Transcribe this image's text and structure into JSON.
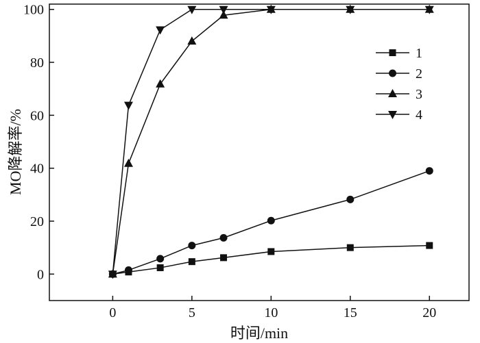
{
  "chart_data": {
    "type": "line",
    "title": "",
    "xlabel": "时间/min",
    "ylabel": "MO降解率/%",
    "xlim": [
      -4,
      22.5
    ],
    "ylim": [
      -10,
      102
    ],
    "xticks": [
      0,
      5,
      10,
      15,
      20
    ],
    "yticks": [
      0,
      20,
      40,
      60,
      80,
      100
    ],
    "grid": false,
    "legend_position": "top-right",
    "series": [
      {
        "name": "1",
        "marker": "square",
        "x": [
          0,
          1,
          3,
          5,
          7,
          10,
          15,
          20
        ],
        "y": [
          0,
          0.8,
          2.4,
          4.7,
          6.2,
          8.5,
          10.0,
          10.8
        ]
      },
      {
        "name": "2",
        "marker": "circle",
        "x": [
          0,
          1,
          3,
          5,
          7,
          10,
          15,
          20
        ],
        "y": [
          0,
          1.5,
          5.8,
          10.8,
          13.7,
          20.2,
          28.2,
          39.0
        ]
      },
      {
        "name": "3",
        "marker": "triangle-up",
        "x": [
          0,
          1,
          3,
          5,
          7,
          10,
          15,
          20
        ],
        "y": [
          0,
          41.8,
          71.8,
          88.0,
          97.8,
          100,
          100,
          100
        ]
      },
      {
        "name": "4",
        "marker": "triangle-down",
        "x": [
          0,
          1,
          3,
          5,
          7,
          10,
          15,
          20
        ],
        "y": [
          0,
          63.8,
          92.3,
          100,
          100,
          100,
          100,
          100
        ]
      }
    ]
  }
}
